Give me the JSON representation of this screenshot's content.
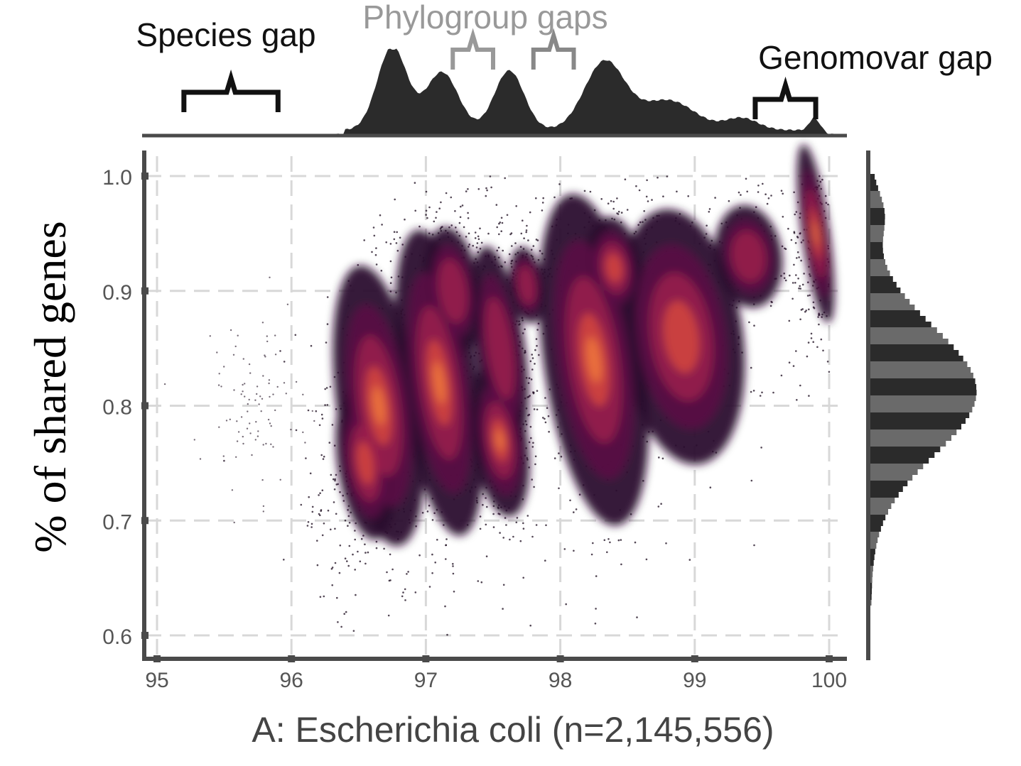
{
  "chart_data": {
    "type": "scatter",
    "subtype": "density-scatter-with-marginal-histograms",
    "xlabel": "A: Escherichia coli (n=2,145,556)",
    "ylabel": "% of shared genes",
    "xlim": [
      95,
      100
    ],
    "ylim": [
      0.6,
      1.0
    ],
    "x_ticks": [
      "95",
      "96",
      "97",
      "98",
      "99",
      "100"
    ],
    "y_ticks": [
      "0.6",
      "0.7",
      "0.8",
      "0.9",
      "1.0"
    ],
    "grid": true,
    "annotations": [
      {
        "text": "Species gap",
        "color": "#111111",
        "x_range": [
          95.2,
          95.9
        ]
      },
      {
        "text": "Phylogroup gaps",
        "color": "#999999",
        "x_range": [
          97.2,
          97.5
        ]
      },
      {
        "text": "",
        "color": "#888888",
        "x_range": [
          97.8,
          98.1
        ]
      },
      {
        "text": "Genomovar gap",
        "color": "#111111",
        "x_range": [
          99.45,
          99.9
        ]
      }
    ],
    "clusters": [
      {
        "x": 96.65,
        "y": 0.8,
        "sx": 0.15,
        "sy": 0.055,
        "intensity": 1.0
      },
      {
        "x": 96.55,
        "y": 0.75,
        "sx": 0.1,
        "sy": 0.03,
        "intensity": 0.7
      },
      {
        "x": 97.1,
        "y": 0.82,
        "sx": 0.14,
        "sy": 0.06,
        "intensity": 0.85
      },
      {
        "x": 97.2,
        "y": 0.9,
        "sx": 0.1,
        "sy": 0.025,
        "intensity": 0.6
      },
      {
        "x": 97.55,
        "y": 0.77,
        "sx": 0.1,
        "sy": 0.03,
        "intensity": 0.9
      },
      {
        "x": 97.55,
        "y": 0.85,
        "sx": 0.09,
        "sy": 0.04,
        "intensity": 0.6
      },
      {
        "x": 97.75,
        "y": 0.905,
        "sx": 0.06,
        "sy": 0.015,
        "intensity": 0.6
      },
      {
        "x": 98.25,
        "y": 0.84,
        "sx": 0.18,
        "sy": 0.065,
        "intensity": 0.85
      },
      {
        "x": 98.4,
        "y": 0.92,
        "sx": 0.1,
        "sy": 0.02,
        "intensity": 0.7
      },
      {
        "x": 98.9,
        "y": 0.86,
        "sx": 0.22,
        "sy": 0.05,
        "intensity": 0.75
      },
      {
        "x": 99.4,
        "y": 0.93,
        "sx": 0.12,
        "sy": 0.02,
        "intensity": 0.45
      },
      {
        "x": 99.9,
        "y": 0.95,
        "sx": 0.05,
        "sy": 0.035,
        "intensity": 0.85
      }
    ],
    "x_marginal": {
      "peaks": [
        {
          "x": 96.75,
          "h": 0.98,
          "w": 0.11
        },
        {
          "x": 97.12,
          "h": 0.68,
          "w": 0.12
        },
        {
          "x": 97.62,
          "h": 0.7,
          "w": 0.11
        },
        {
          "x": 98.33,
          "h": 0.8,
          "w": 0.15
        },
        {
          "x": 98.8,
          "h": 0.35,
          "w": 0.2
        },
        {
          "x": 99.35,
          "h": 0.14,
          "w": 0.12
        },
        {
          "x": 99.9,
          "h": 0.17,
          "w": 0.04
        }
      ]
    },
    "y_marginal": {
      "peaks": [
        {
          "y": 0.815,
          "h": 0.9,
          "w": 0.055
        },
        {
          "y": 0.97,
          "h": 0.1,
          "w": 0.02
        }
      ]
    },
    "colors": {
      "axis": "#4a4a4a",
      "grid": "#d8d8d8",
      "marginal_fill": "#2b2b2b",
      "marginal_band": "#6a6a6a",
      "density_low": "#2a0a2e",
      "density_mid": "#9b1d4c",
      "density_high": "#f07a3c"
    }
  }
}
